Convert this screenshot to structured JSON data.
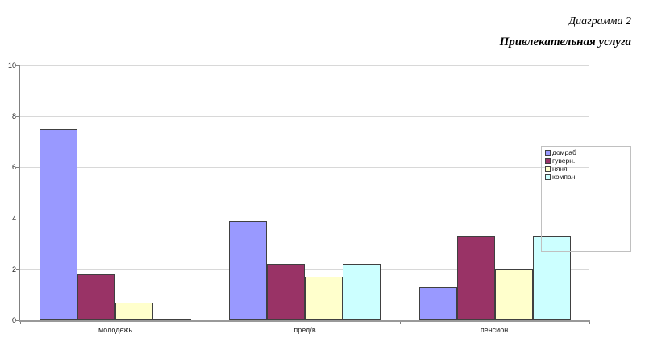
{
  "header": {
    "caption": "Диаграмма 2",
    "title": "Привлекательная услуга"
  },
  "chart_data": {
    "type": "bar",
    "title": "Привлекательная услуга",
    "caption": "Диаграмма 2",
    "categories": [
      "молодежь",
      "пред/в",
      "пенсион"
    ],
    "series": [
      {
        "name": "домраб",
        "color": "#9999FF",
        "values": [
          7.5,
          3.9,
          1.3
        ]
      },
      {
        "name": "гуверн.",
        "color": "#993366",
        "values": [
          1.8,
          2.2,
          3.3
        ]
      },
      {
        "name": "няня",
        "color": "#FFFFCC",
        "values": [
          0.7,
          1.7,
          2.0
        ]
      },
      {
        "name": "компан.",
        "color": "#CCFFFF",
        "values": [
          0.0,
          2.2,
          3.3
        ]
      }
    ],
    "xlabel": "",
    "ylabel": "",
    "ylim": [
      0,
      10
    ],
    "yticks": [
      0,
      2,
      4,
      6,
      8,
      10
    ],
    "grid": true,
    "legend_position": "right-overlay",
    "colors": {
      "background": "#ffffff",
      "bar_border": "#404040",
      "gridline": "#d8d8d8",
      "axis": "#808080",
      "legend_border": "#c0c0c0",
      "text": "#222222"
    }
  }
}
